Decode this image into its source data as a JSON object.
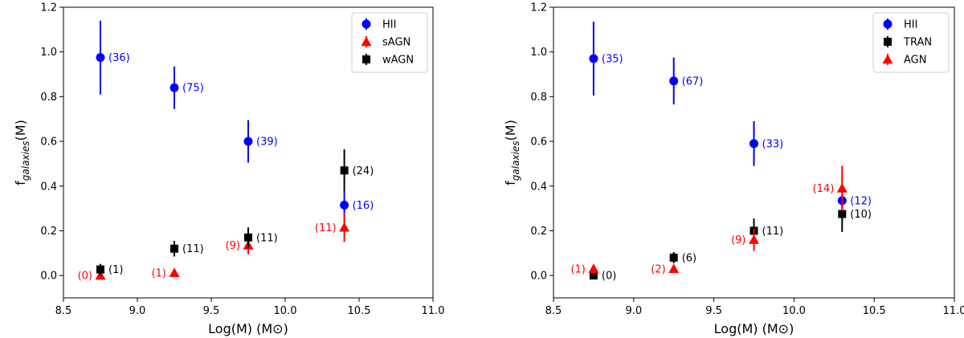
{
  "colors": {
    "hii": "#0000ff",
    "agn": "#ff0000",
    "tran": "#000000"
  },
  "chart_data": [
    {
      "type": "scatter",
      "title": "",
      "xlabel": "Log(M) (M⊙)",
      "ylabel_main": "f",
      "ylabel_sub": "galaxies",
      "ylabel_tail": "(M)",
      "xlim": [
        8.5,
        11.0
      ],
      "ylim": [
        -0.1,
        1.2
      ],
      "xticks": [
        8.5,
        9.0,
        9.5,
        10.0,
        10.5,
        11.0
      ],
      "xtick_labels": [
        "8.5",
        "9.0",
        "9.5",
        "10.0",
        "10.5",
        "11.0"
      ],
      "yticks": [
        0.0,
        0.2,
        0.4,
        0.6,
        0.8,
        1.0,
        1.2
      ],
      "ytick_labels": [
        "0.0",
        "0.2",
        "0.4",
        "0.6",
        "0.8",
        "1.0",
        "1.2"
      ],
      "legend_position": "top-right",
      "series": [
        {
          "name": "HII",
          "marker": "circle",
          "color": "#0000ff",
          "points": [
            {
              "x": 8.75,
              "y": 0.975,
              "err": 0.165,
              "label": "(36)",
              "side": "right"
            },
            {
              "x": 9.25,
              "y": 0.84,
              "err": 0.095,
              "label": "(75)",
              "side": "right"
            },
            {
              "x": 9.75,
              "y": 0.6,
              "err": 0.095,
              "label": "(39)",
              "side": "right"
            },
            {
              "x": 10.4,
              "y": 0.315,
              "err": 0.06,
              "label": "(16)",
              "side": "right"
            }
          ]
        },
        {
          "name": "sAGN",
          "marker": "triangle",
          "color": "#ff0000",
          "points": [
            {
              "x": 8.75,
              "y": 0.0,
              "err": 0.0,
              "label": "(0)",
              "side": "left"
            },
            {
              "x": 9.25,
              "y": 0.012,
              "err": 0.0,
              "label": "(1)",
              "side": "left"
            },
            {
              "x": 9.75,
              "y": 0.135,
              "err": 0.04,
              "label": "(9)",
              "side": "left"
            },
            {
              "x": 10.4,
              "y": 0.215,
              "err": 0.065,
              "label": "(11)",
              "side": "left"
            }
          ]
        },
        {
          "name": "wAGN",
          "marker": "square",
          "color": "#000000",
          "points": [
            {
              "x": 8.75,
              "y": 0.027,
              "err": 0.025,
              "label": "(1)",
              "side": "right"
            },
            {
              "x": 9.25,
              "y": 0.12,
              "err": 0.035,
              "label": "(11)",
              "side": "right"
            },
            {
              "x": 9.75,
              "y": 0.17,
              "err": 0.045,
              "label": "(11)",
              "side": "right"
            },
            {
              "x": 10.4,
              "y": 0.47,
              "err": 0.095,
              "label": "(24)",
              "side": "right"
            }
          ]
        }
      ]
    },
    {
      "type": "scatter",
      "title": "",
      "xlabel": "Log(M) (M⊙)",
      "ylabel_main": "f",
      "ylabel_sub": "galaxies",
      "ylabel_tail": "(M)",
      "xlim": [
        8.5,
        11.0
      ],
      "ylim": [
        -0.1,
        1.2
      ],
      "xticks": [
        8.5,
        9.0,
        9.5,
        10.0,
        10.5,
        11.0
      ],
      "xtick_labels": [
        "8.5",
        "9.0",
        "9.5",
        "10.0",
        "10.5",
        "11.0"
      ],
      "yticks": [
        0.0,
        0.2,
        0.4,
        0.6,
        0.8,
        1.0,
        1.2
      ],
      "ytick_labels": [
        "0.0",
        "0.2",
        "0.4",
        "0.6",
        "0.8",
        "1.0",
        "1.2"
      ],
      "legend_position": "top-right",
      "series": [
        {
          "name": "HII",
          "marker": "circle",
          "color": "#0000ff",
          "points": [
            {
              "x": 8.75,
              "y": 0.97,
              "err": 0.165,
              "label": "(35)",
              "side": "right"
            },
            {
              "x": 9.25,
              "y": 0.87,
              "err": 0.105,
              "label": "(67)",
              "side": "right"
            },
            {
              "x": 9.75,
              "y": 0.59,
              "err": 0.1,
              "label": "(33)",
              "side": "right"
            },
            {
              "x": 10.3,
              "y": 0.335,
              "err": 0.03,
              "label": "(12)",
              "side": "right"
            }
          ]
        },
        {
          "name": "TRAN",
          "marker": "square",
          "color": "#000000",
          "points": [
            {
              "x": 8.75,
              "y": 0.0,
              "err": 0.0,
              "label": "(0)",
              "side": "right"
            },
            {
              "x": 9.25,
              "y": 0.08,
              "err": 0.025,
              "label": "(6)",
              "side": "right"
            },
            {
              "x": 9.75,
              "y": 0.2,
              "err": 0.055,
              "label": "(11)",
              "side": "right"
            },
            {
              "x": 10.3,
              "y": 0.275,
              "err": 0.08,
              "label": "(10)",
              "side": "right"
            }
          ]
        },
        {
          "name": "AGN",
          "marker": "triangle",
          "color": "#ff0000",
          "points": [
            {
              "x": 8.75,
              "y": 0.03,
              "err": 0.015,
              "label": "(1)",
              "side": "left"
            },
            {
              "x": 9.25,
              "y": 0.03,
              "err": 0.0,
              "label": "(2)",
              "side": "left"
            },
            {
              "x": 9.75,
              "y": 0.16,
              "err": 0.05,
              "label": "(9)",
              "side": "left"
            },
            {
              "x": 10.3,
              "y": 0.39,
              "err": 0.1,
              "label": "(14)",
              "side": "left"
            }
          ]
        }
      ]
    }
  ]
}
